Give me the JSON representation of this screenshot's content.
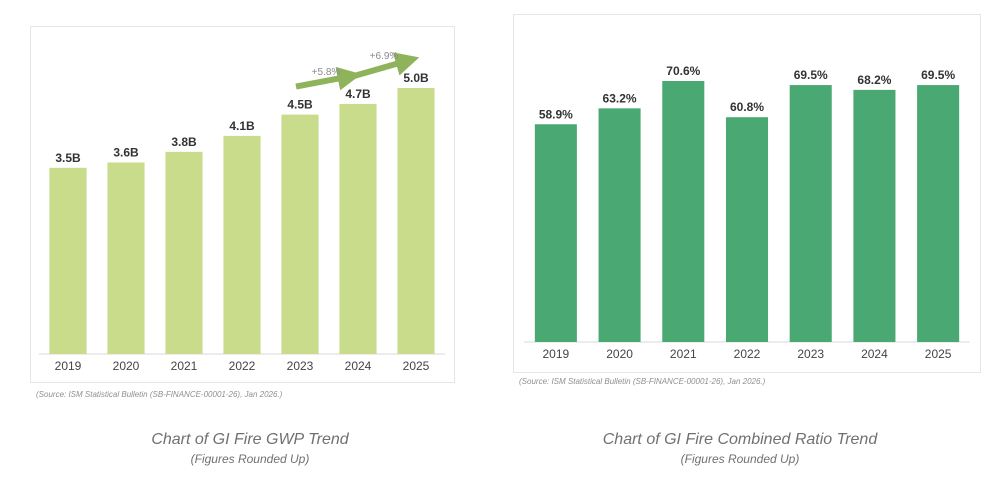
{
  "chart_data": [
    {
      "type": "bar",
      "title": "Chart of GI Fire GWP Trend",
      "subtitle": "(Figures Rounded Up)",
      "source": "(Source: ISM Statistical Bulletin (SB-FINANCE-00001-26), Jan 2026.)",
      "categories": [
        "2019",
        "2020",
        "2021",
        "2022",
        "2023",
        "2024",
        "2025"
      ],
      "values": [
        3.5,
        3.6,
        3.8,
        4.1,
        4.5,
        4.7,
        5.0
      ],
      "value_labels": [
        "3.5B",
        "3.6B",
        "3.8B",
        "4.1B",
        "4.5B",
        "4.7B",
        "5.0B"
      ],
      "ylim": [
        0,
        5.0
      ],
      "grid": false,
      "bar_color": "#c8dc8c",
      "arrow_color": "#8fb35a",
      "annotations": [
        {
          "text": "+5.8%",
          "from": "2023",
          "to": "2024"
        },
        {
          "text": "+6.9%",
          "from": "2024",
          "to": "2025"
        }
      ]
    },
    {
      "type": "bar",
      "title": "Chart of GI Fire Combined Ratio Trend",
      "subtitle": "(Figures Rounded Up)",
      "source": "(Source: ISM Statistical Bulletin (SB-FINANCE-00001-26), Jan 2026.)",
      "categories": [
        "2019",
        "2020",
        "2021",
        "2022",
        "2023",
        "2024",
        "2025"
      ],
      "values": [
        58.9,
        63.2,
        70.6,
        60.8,
        69.5,
        68.2,
        69.5
      ],
      "value_labels": [
        "58.9%",
        "63.2%",
        "70.6%",
        "60.8%",
        "69.5%",
        "68.2%",
        "69.5%"
      ],
      "ylim": [
        0,
        70.6
      ],
      "grid": false,
      "bar_color": "#4aa872"
    }
  ]
}
